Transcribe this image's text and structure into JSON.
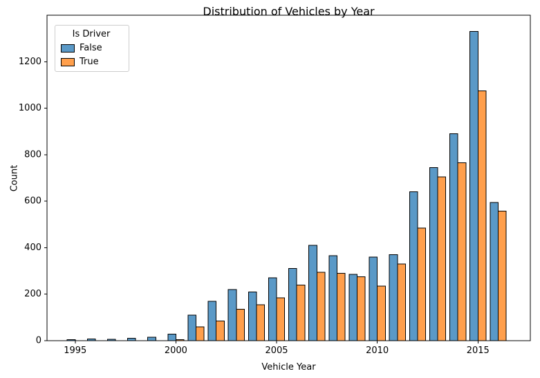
{
  "chart_data": {
    "type": "bar",
    "title": "Distribution of Vehicles by Year",
    "xlabel": "Vehicle Year",
    "ylabel": "Count",
    "legend": {
      "title": "Is Driver",
      "position": "upper left",
      "entries": [
        "False",
        "True"
      ]
    },
    "categories": [
      1995,
      1996,
      1997,
      1998,
      1999,
      2000,
      2001,
      2002,
      2003,
      2004,
      2005,
      2006,
      2007,
      2008,
      2009,
      2010,
      2011,
      2012,
      2013,
      2014,
      2015,
      2016
    ],
    "series": [
      {
        "name": "False",
        "color": "#5A99C7",
        "edge_color": "#000000",
        "values": [
          5,
          8,
          6,
          10,
          15,
          28,
          110,
          170,
          220,
          210,
          270,
          310,
          410,
          365,
          285,
          360,
          370,
          640,
          745,
          890,
          1330,
          595
        ]
      },
      {
        "name": "True",
        "color": "#FF9F4C",
        "edge_color": "#000000",
        "values": [
          0,
          0,
          0,
          0,
          0,
          4,
          60,
          85,
          135,
          155,
          185,
          240,
          295,
          290,
          275,
          235,
          330,
          485,
          705,
          765,
          1075,
          557
        ]
      }
    ],
    "x_ticks": [
      1995,
      2000,
      2005,
      2010,
      2015
    ],
    "y_ticks": [
      0,
      200,
      400,
      600,
      800,
      1000,
      1200
    ],
    "xlim": [
      1993.6,
      2017.6
    ],
    "ylim": [
      0,
      1400
    ],
    "bar_width": 0.4,
    "grid": false,
    "background": "#ffffff"
  }
}
